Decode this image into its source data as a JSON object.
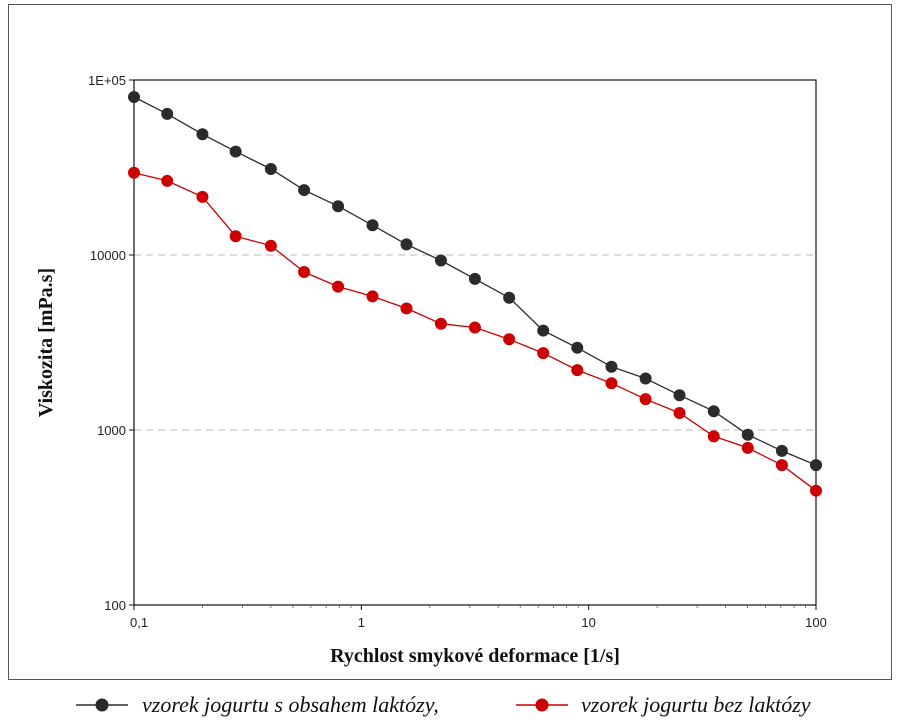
{
  "chart_data": {
    "type": "line",
    "xlabel": "Rychlost smykové deformace [1/s]",
    "ylabel": "Viskozita [mPa.s]",
    "xscale": "log",
    "yscale": "log",
    "xlim": [
      0.1,
      100
    ],
    "ylim": [
      100,
      100000
    ],
    "x_ticks": [
      {
        "value": 0.1,
        "label": "0,1"
      },
      {
        "value": 1,
        "label": "1"
      },
      {
        "value": 10,
        "label": "10"
      },
      {
        "value": 100,
        "label": "100"
      }
    ],
    "y_ticks": [
      {
        "value": 100,
        "label": "100"
      },
      {
        "value": 1000,
        "label": "1000"
      },
      {
        "value": 10000,
        "label": "10000"
      },
      {
        "value": 100000,
        "label": "1E+05"
      }
    ],
    "grid": "horizontal dashed at 1000 and 10000",
    "legend_position": "bottom",
    "series": [
      {
        "name": "vzorek jogurtu s obsahem laktózy,",
        "color": "#2b2b2b",
        "x": [
          0.1,
          0.14,
          0.2,
          0.28,
          0.4,
          0.56,
          0.79,
          1.12,
          1.58,
          2.24,
          3.16,
          4.47,
          6.31,
          8.91,
          12.6,
          17.8,
          25.1,
          35.5,
          50.1,
          70.8,
          100
        ],
        "y": [
          80000,
          64000,
          49000,
          39000,
          31000,
          23500,
          19000,
          14800,
          11500,
          9300,
          7300,
          5700,
          3700,
          2950,
          2300,
          1970,
          1580,
          1280,
          940,
          760,
          630
        ]
      },
      {
        "name": "vzorek jogurtu bez laktózy",
        "color": "#cc0000",
        "x": [
          0.1,
          0.14,
          0.2,
          0.28,
          0.4,
          0.56,
          0.79,
          1.12,
          1.58,
          2.24,
          3.16,
          4.47,
          6.31,
          8.91,
          12.6,
          17.8,
          25.1,
          35.5,
          50.1,
          70.8,
          100
        ],
        "y": [
          29500,
          26500,
          21500,
          12800,
          11300,
          8000,
          6600,
          5800,
          4950,
          4050,
          3850,
          3300,
          2750,
          2200,
          1850,
          1500,
          1250,
          920,
          790,
          630,
          450
        ]
      }
    ]
  }
}
